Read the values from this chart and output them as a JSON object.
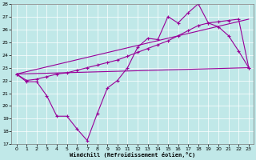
{
  "xlabel": "Windchill (Refroidissement éolien,°C)",
  "xlim": [
    -0.5,
    23.5
  ],
  "ylim": [
    17,
    28
  ],
  "xticks": [
    0,
    1,
    2,
    3,
    4,
    5,
    6,
    7,
    8,
    9,
    10,
    11,
    12,
    13,
    14,
    15,
    16,
    17,
    18,
    19,
    20,
    21,
    22,
    23
  ],
  "yticks": [
    17,
    18,
    19,
    20,
    21,
    22,
    23,
    24,
    25,
    26,
    27,
    28
  ],
  "bg_color": "#c0e8e8",
  "line_color": "#990099",
  "line1_x": [
    0,
    1,
    2,
    3,
    4,
    5,
    6,
    7,
    8,
    9,
    10,
    11,
    12,
    13,
    14,
    15,
    16,
    17,
    18,
    19,
    20,
    21,
    22,
    23
  ],
  "line1_y": [
    22.5,
    21.9,
    21.9,
    20.8,
    19.2,
    19.2,
    18.2,
    17.3,
    19.4,
    21.4,
    22.0,
    23.0,
    24.6,
    25.3,
    25.2,
    27.0,
    26.5,
    27.3,
    28.0,
    26.5,
    26.2,
    25.5,
    24.3,
    23.0
  ],
  "line2_x": [
    0,
    23
  ],
  "line2_y": [
    22.5,
    23.0
  ],
  "line3_x": [
    0,
    1,
    2,
    3,
    4,
    5,
    6,
    7,
    8,
    9,
    10,
    11,
    12,
    13,
    14,
    15,
    16,
    17,
    18,
    19,
    20,
    21,
    22,
    23
  ],
  "line3_y": [
    22.5,
    22.0,
    22.1,
    22.3,
    22.5,
    22.6,
    22.8,
    23.0,
    23.2,
    23.4,
    23.6,
    23.9,
    24.2,
    24.5,
    24.8,
    25.1,
    25.5,
    25.9,
    26.3,
    26.5,
    26.6,
    26.7,
    26.8,
    23.0
  ],
  "line4_x": [
    0,
    23
  ],
  "line4_y": [
    22.5,
    26.8
  ]
}
